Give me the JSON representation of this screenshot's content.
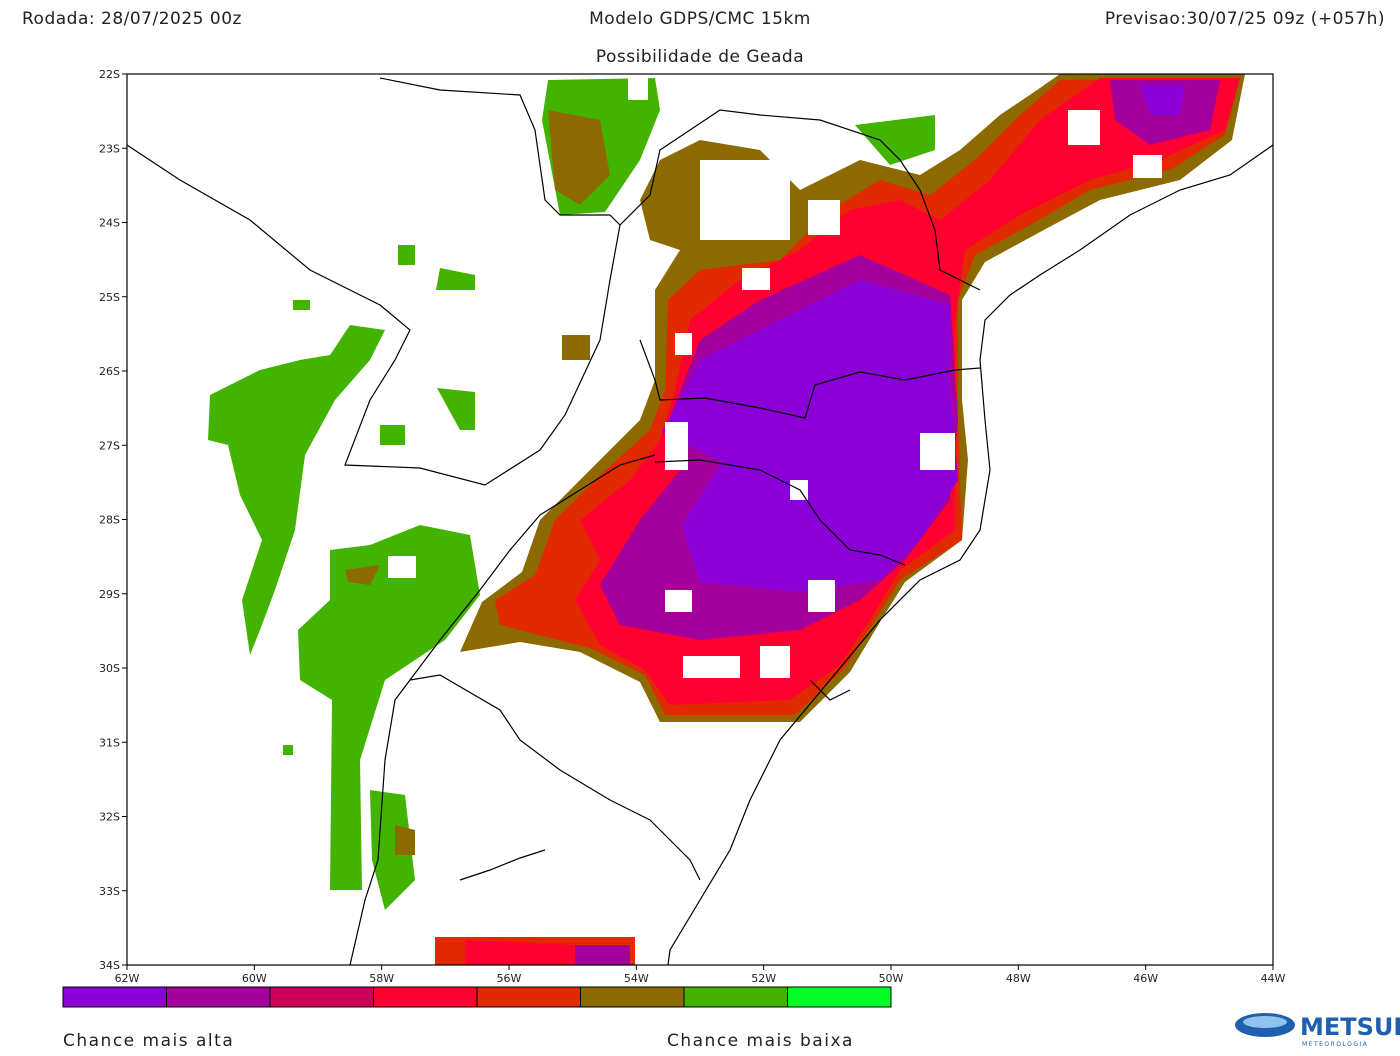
{
  "header": {
    "left": "Rodada: 28/07/2025 00z",
    "center": "Modelo GDPS/CMC 15km",
    "right": "Previsao:30/07/25 09z (+057h)",
    "subtitle": "Possibilidade de Geada"
  },
  "map": {
    "lat_labels": [
      "22S",
      "23S",
      "24S",
      "25S",
      "26S",
      "27S",
      "28S",
      "29S",
      "30S",
      "31S",
      "32S",
      "33S",
      "34S"
    ],
    "lon_labels": [
      "62W",
      "60W",
      "58W",
      "56W",
      "54W",
      "52W",
      "50W",
      "48W",
      "46W",
      "44W"
    ]
  },
  "legend": {
    "colors": [
      "#8a00d6",
      "#a4009c",
      "#cc005c",
      "#ff0030",
      "#e22a00",
      "#8c6a00",
      "#42b400",
      "#00ff2a"
    ],
    "high_label": "Chance mais alta",
    "low_label": "Chance mais baixa"
  },
  "logo": {
    "name": "METSUL",
    "tagline": "METEOROLOGIA"
  }
}
